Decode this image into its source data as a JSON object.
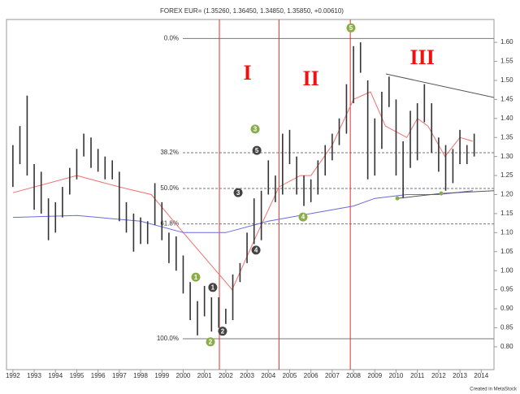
{
  "chart_data": {
    "type": "ohlc",
    "title": "FOREX EUR= (1.35260, 1.36450, 1.34850, 1.35850, +0.00610)",
    "footer": "Created in MetaStock",
    "bar_color": "#333333",
    "x": [
      1992,
      1992.33,
      1992.67,
      1993,
      1993.33,
      1993.67,
      1994,
      1994.33,
      1994.67,
      1995,
      1995.33,
      1995.67,
      1996,
      1996.33,
      1996.67,
      1997,
      1997.33,
      1997.67,
      1998,
      1998.33,
      1998.67,
      1999,
      1999.33,
      1999.67,
      2000,
      2000.33,
      2000.67,
      2001,
      2001.33,
      2001.67,
      2002,
      2002.33,
      2002.67,
      2003,
      2003.33,
      2003.67,
      2004,
      2004.33,
      2004.67,
      2005,
      2005.33,
      2005.67,
      2006,
      2006.33,
      2006.67,
      2007,
      2007.33,
      2007.67,
      2008,
      2008.33,
      2008.67,
      2009,
      2009.33,
      2009.67,
      2010,
      2010.33,
      2010.67,
      2011,
      2011.33,
      2011.67,
      2012,
      2012.33,
      2012.67,
      2013,
      2013.33,
      2013.67
    ],
    "high": [
      1.33,
      1.38,
      1.46,
      1.28,
      1.26,
      1.19,
      1.18,
      1.22,
      1.27,
      1.32,
      1.36,
      1.35,
      1.32,
      1.3,
      1.29,
      1.26,
      1.18,
      1.15,
      1.14,
      1.13,
      1.23,
      1.18,
      1.1,
      1.09,
      1.04,
      0.97,
      0.92,
      0.96,
      0.93,
      0.93,
      0.9,
      0.99,
      1.02,
      1.1,
      1.19,
      1.21,
      1.29,
      1.25,
      1.36,
      1.37,
      1.3,
      1.25,
      1.24,
      1.29,
      1.33,
      1.36,
      1.4,
      1.49,
      1.59,
      1.6,
      1.5,
      1.4,
      1.47,
      1.51,
      1.45,
      1.34,
      1.42,
      1.44,
      1.49,
      1.44,
      1.35,
      1.33,
      1.32,
      1.37,
      1.33,
      1.36
    ],
    "low": [
      1.22,
      1.28,
      1.25,
      1.16,
      1.15,
      1.08,
      1.1,
      1.14,
      1.2,
      1.24,
      1.3,
      1.27,
      1.26,
      1.24,
      1.24,
      1.13,
      1.1,
      1.05,
      1.07,
      1.07,
      1.12,
      1.08,
      1.02,
      1.0,
      0.94,
      0.87,
      0.83,
      0.88,
      0.84,
      0.85,
      0.86,
      0.87,
      0.97,
      1.02,
      1.07,
      1.08,
      1.2,
      1.18,
      1.2,
      1.28,
      1.2,
      1.17,
      1.18,
      1.2,
      1.25,
      1.29,
      1.33,
      1.36,
      1.44,
      1.52,
      1.24,
      1.25,
      1.32,
      1.43,
      1.25,
      1.19,
      1.27,
      1.29,
      1.39,
      1.31,
      1.26,
      1.21,
      1.23,
      1.28,
      1.28,
      1.3
    ],
    "series": [
      {
        "color": "#f07070",
        "x": [
          1992,
          1995,
          1997,
          1998.5,
          2000,
          2002,
          2002.3,
          2003.5,
          2004.5,
          2005.5,
          2006,
          2007,
          2008,
          2008.8,
          2009.5,
          2010.5,
          2011,
          2011.5,
          2012.3,
          2013,
          2013.6
        ],
        "values": [
          1.205,
          1.25,
          1.22,
          1.2,
          1.1,
          0.97,
          0.95,
          1.1,
          1.22,
          1.25,
          1.25,
          1.33,
          1.45,
          1.47,
          1.38,
          1.35,
          1.4,
          1.38,
          1.3,
          1.35,
          1.34
        ]
      },
      {
        "color": "#6a6ae0",
        "x": [
          1992,
          1995,
          1998,
          2000,
          2002,
          2004,
          2006,
          2008,
          2009,
          2010.5,
          2012,
          2013.6
        ],
        "values": [
          1.14,
          1.145,
          1.13,
          1.1,
          1.1,
          1.13,
          1.15,
          1.17,
          1.19,
          1.2,
          1.2,
          1.21
        ]
      }
    ],
    "xlim": [
      1991.7,
      2014.6
    ],
    "xticks": [
      1992,
      1993,
      1994,
      1995,
      1996,
      1997,
      1998,
      1999,
      2000,
      2001,
      2002,
      2003,
      2004,
      2005,
      2006,
      2007,
      2008,
      2009,
      2010,
      2011,
      2012,
      2013,
      2014
    ],
    "ylim": [
      0.74,
      1.66
    ],
    "yticks": [
      {
        "value": 0.8,
        "label": "0.80"
      },
      {
        "value": 0.85,
        "label": "0.85"
      },
      {
        "value": 0.9,
        "label": "0.90"
      },
      {
        "value": 0.95,
        "label": "0.95"
      },
      {
        "value": 1.0,
        "label": "1.00"
      },
      {
        "value": 1.05,
        "label": "1.05"
      },
      {
        "value": 1.1,
        "label": "1.10"
      },
      {
        "value": 1.15,
        "label": "1.15"
      },
      {
        "value": 1.2,
        "label": "1.20"
      },
      {
        "value": 1.25,
        "label": "1.25"
      },
      {
        "value": 1.3,
        "label": "1.30"
      },
      {
        "value": 1.35,
        "label": "1.35"
      },
      {
        "value": 1.4,
        "label": "1.40"
      },
      {
        "value": 1.45,
        "label": "1.45"
      },
      {
        "value": 1.5,
        "label": "1.50"
      },
      {
        "value": 1.55,
        "label": "1.55"
      },
      {
        "value": 1.6,
        "label": "1.60"
      }
    ],
    "fib_levels": [
      {
        "label": "0.0%",
        "value": 1.61,
        "dashed": false
      },
      {
        "label": "38.2%",
        "value": 1.31,
        "dashed": true
      },
      {
        "label": "50.0%",
        "value": 1.216,
        "dashed": true
      },
      {
        "label": "61.8%",
        "value": 1.123,
        "dashed": true
      },
      {
        "label": "100.0%",
        "value": 0.821,
        "dashed": false
      }
    ],
    "vlines": {
      "color": "#e03030",
      "x": [
        2001.7,
        2004.5,
        2007.85
      ]
    },
    "trendlines": [
      {
        "color": "#555555",
        "x": [
          2009.52,
          2014.6
        ],
        "y": [
          1.517,
          1.455
        ]
      },
      {
        "color": "#555555",
        "x": [
          2010.06,
          2012.12,
          2014.6
        ],
        "y": [
          1.19,
          1.203,
          1.21
        ]
      }
    ],
    "pivots": {
      "color": "#8aad4a",
      "x": [
        2010.06,
        2012.12
      ],
      "y": [
        1.19,
        1.203
      ]
    },
    "wave_labels": [
      {
        "text": "1",
        "color": "#8aad4a",
        "x": 2000.59,
        "y": 0.983
      },
      {
        "text": "1",
        "color": "#444444",
        "x": 2001.39,
        "y": 0.956
      },
      {
        "text": "2",
        "color": "#8aad4a",
        "x": 2001.28,
        "y": 0.813
      },
      {
        "text": "2",
        "color": "#444444",
        "x": 2001.85,
        "y": 0.841
      },
      {
        "text": "3",
        "color": "#444444",
        "x": 2002.58,
        "y": 1.205
      },
      {
        "text": "3",
        "color": "#8aad4a",
        "x": 2003.38,
        "y": 1.372
      },
      {
        "text": "4",
        "color": "#444444",
        "x": 2003.42,
        "y": 1.054
      },
      {
        "text": "4",
        "color": "#8aad4a",
        "x": 2005.63,
        "y": 1.141
      },
      {
        "text": "5",
        "color": "#444444",
        "x": 2003.46,
        "y": 1.316
      },
      {
        "text": "5",
        "color": "#8aad4a",
        "x": 2007.88,
        "y": 1.638
      }
    ],
    "roman_labels": [
      {
        "text": "I",
        "color": "#ee1111",
        "x": 2003.02,
        "y": 1.515
      },
      {
        "text": "II",
        "color": "#ee1111",
        "x": 2006.0,
        "y": 1.5
      },
      {
        "text": "III",
        "color": "#ee1111",
        "x": 2011.23,
        "y": 1.555
      }
    ]
  }
}
